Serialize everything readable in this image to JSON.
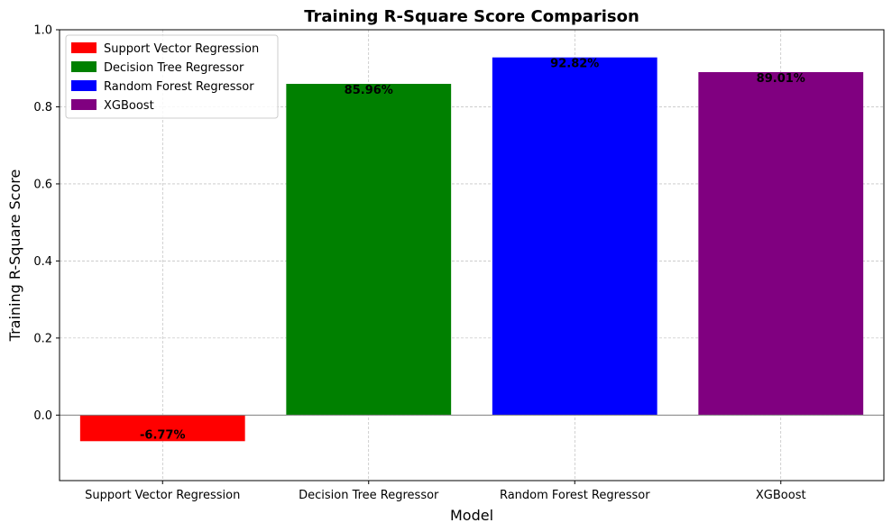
{
  "chart_data": {
    "type": "bar",
    "title": "Training R-Square Score Comparison",
    "xlabel": "Model",
    "ylabel": "Training R-Square Score",
    "categories": [
      "Support Vector Regression",
      "Decision Tree Regressor",
      "Random Forest Regressor",
      "XGBoost"
    ],
    "values": [
      -0.0677,
      0.8596,
      0.9282,
      0.8901
    ],
    "data_labels": [
      "-6.77%",
      "85.96%",
      "92.82%",
      "89.01%"
    ],
    "colors": [
      "#ff0000",
      "#008000",
      "#0000ff",
      "#800080"
    ],
    "ylim": [
      -0.17,
      1.0
    ],
    "yticks": [
      0.0,
      0.2,
      0.4,
      0.6,
      0.8,
      1.0
    ],
    "ytick_labels": [
      "0.0",
      "0.2",
      "0.4",
      "0.6",
      "0.8",
      "1.0"
    ],
    "grid": true,
    "zero_line": true,
    "legend": {
      "placement": "top-left",
      "entries": [
        "Support Vector Regression",
        "Decision Tree Regressor",
        "Random Forest Regressor",
        "XGBoost"
      ]
    }
  }
}
